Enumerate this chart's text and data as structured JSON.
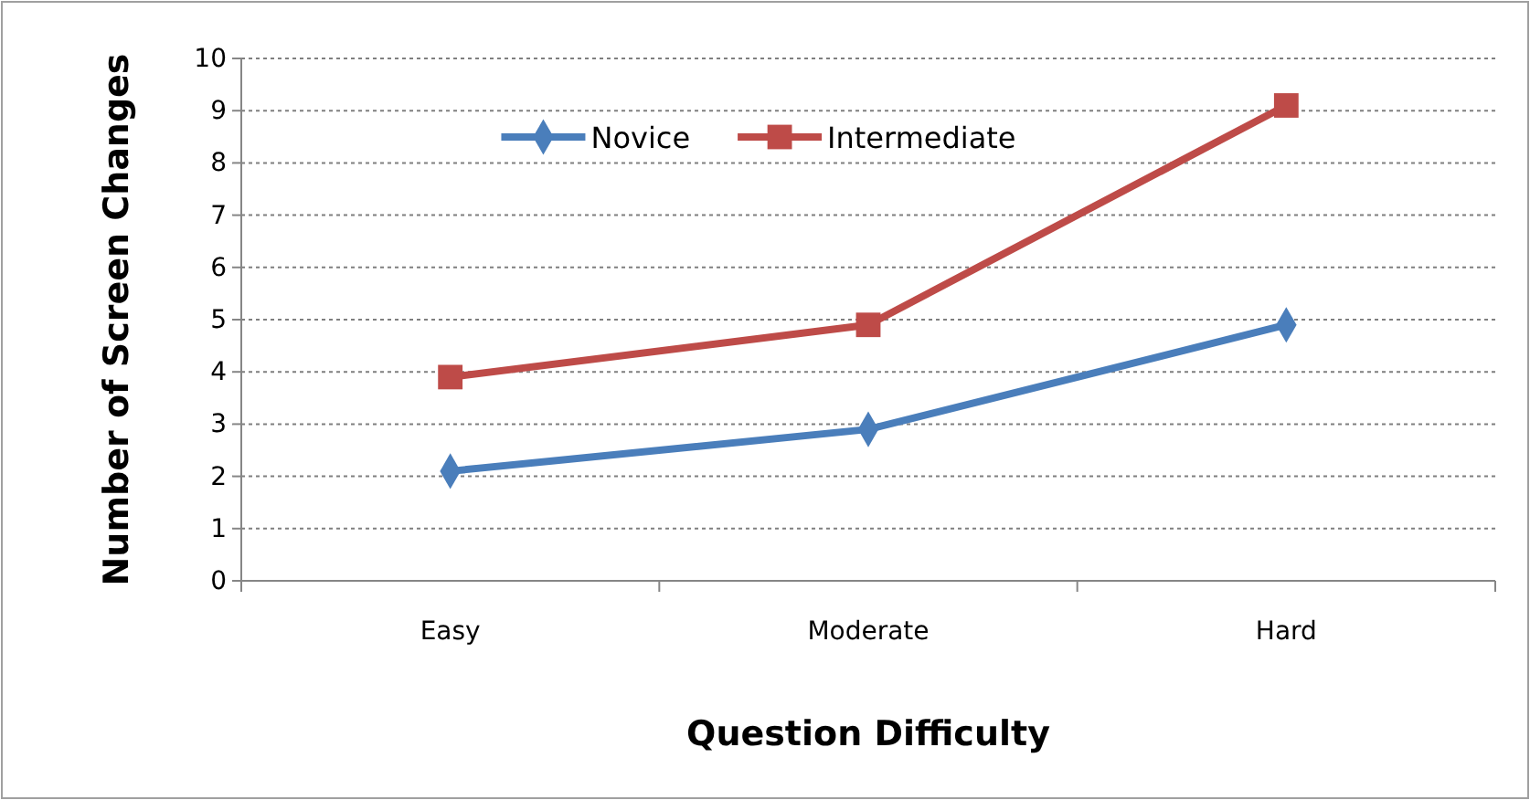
{
  "chart_data": {
    "type": "line",
    "xlabel": "Question Difficulty",
    "ylabel": "Number of Screen Changes",
    "categories": [
      "Easy",
      "Moderate",
      "Hard"
    ],
    "series": [
      {
        "name": "Novice",
        "color": "#4a7ebb",
        "values": [
          2.1,
          2.9,
          4.9
        ],
        "marker": "diamond"
      },
      {
        "name": "Intermediate",
        "color": "#be4b48",
        "values": [
          3.9,
          4.9,
          9.1
        ],
        "marker": "square"
      }
    ],
    "ylim": [
      0,
      10
    ],
    "yticks": [
      0,
      1,
      2,
      3,
      4,
      5,
      6,
      7,
      8,
      9,
      10
    ],
    "grid": "y",
    "legend": "top",
    "line_style": "solid"
  }
}
